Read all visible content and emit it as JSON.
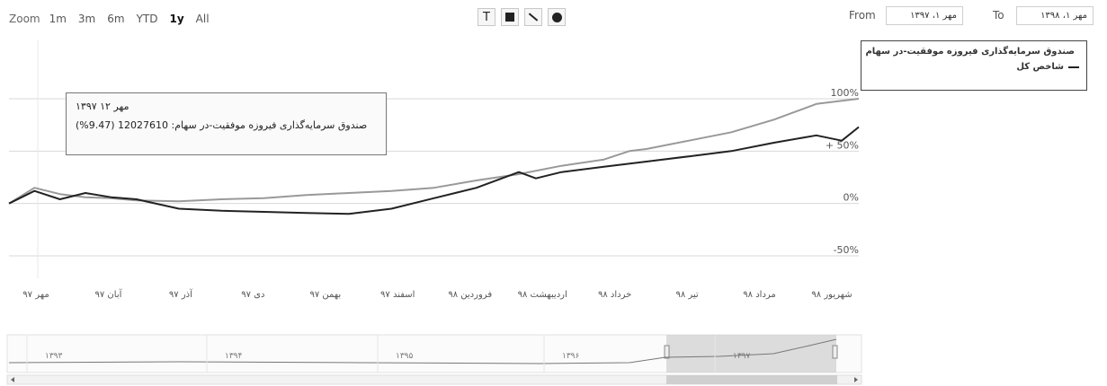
{
  "zoom": {
    "label": "Zoom",
    "buttons": [
      "1m",
      "3m",
      "6m",
      "YTD",
      "1y",
      "All"
    ],
    "active": "1y"
  },
  "tools": {
    "text_glyph": "T",
    "icons": [
      "text-tool-icon",
      "rectangle-tool-icon",
      "line-tool-icon",
      "circle-tool-icon"
    ]
  },
  "range": {
    "from_label": "From",
    "from_value": "مهر ۱، ۱۳۹۷",
    "to_label": "To",
    "to_value": "مهر ۱، ۱۳۹۸"
  },
  "tooltip": {
    "date": "مهر ۱۲ ۱۳۹۷",
    "text": "صندوق سرمایه‌گذاری فیروزه موفقیت-در سهام: 12027610 (9.47%)"
  },
  "colors": {
    "series_fund": "#999999",
    "series_index": "#222222",
    "grid": "#d8d8d8",
    "navigator_selection": "#cfcfcf"
  },
  "chart_data": {
    "type": "line",
    "y_unit": "%",
    "y_ticks": [
      "100%",
      "+ 50%",
      "0%",
      "-50%"
    ],
    "ylim": [
      -50,
      100
    ],
    "x_labels": [
      "مهر ۹۷",
      "آبان ۹۷",
      "آذر ۹۷",
      "دی ۹۷",
      "بهمن ۹۷",
      "اسفند ۹۷",
      "فروردین ۹۸",
      "اردیبهشت ۹۸",
      "خرداد ۹۸",
      "تیر ۹۸",
      "مرداد ۹۸",
      "شهریور ۹۸"
    ],
    "grid": true,
    "legend_position": "top-right",
    "series": [
      {
        "name": "صندوق سرمایه‌گذاری فیروزه موفقیت-در سهام",
        "points": [
          [
            0,
            0
          ],
          [
            3,
            15
          ],
          [
            6,
            9
          ],
          [
            9,
            6
          ],
          [
            12,
            5
          ],
          [
            15,
            3
          ],
          [
            20,
            2
          ],
          [
            25,
            4
          ],
          [
            30,
            5
          ],
          [
            35,
            8
          ],
          [
            40,
            10
          ],
          [
            45,
            12
          ],
          [
            50,
            15
          ],
          [
            55,
            22
          ],
          [
            60,
            28
          ],
          [
            65,
            36
          ],
          [
            70,
            42
          ],
          [
            73,
            50
          ],
          [
            75,
            52
          ],
          [
            80,
            60
          ],
          [
            85,
            68
          ],
          [
            90,
            80
          ],
          [
            95,
            95
          ],
          [
            98,
            98
          ],
          [
            100,
            100
          ]
        ]
      },
      {
        "name": "شاخص کل",
        "points": [
          [
            0,
            0
          ],
          [
            3,
            12
          ],
          [
            6,
            4
          ],
          [
            9,
            10
          ],
          [
            12,
            6
          ],
          [
            15,
            4
          ],
          [
            20,
            -5
          ],
          [
            25,
            -7
          ],
          [
            30,
            -8
          ],
          [
            35,
            -9
          ],
          [
            40,
            -10
          ],
          [
            45,
            -5
          ],
          [
            50,
            5
          ],
          [
            55,
            15
          ],
          [
            60,
            30
          ],
          [
            62,
            24
          ],
          [
            65,
            30
          ],
          [
            70,
            35
          ],
          [
            75,
            40
          ],
          [
            80,
            45
          ],
          [
            85,
            50
          ],
          [
            90,
            58
          ],
          [
            95,
            65
          ],
          [
            98,
            60
          ],
          [
            100,
            73
          ]
        ]
      }
    ],
    "navigator": {
      "years": [
        "۱۳۹۳",
        "۱۳۹۴",
        "۱۳۹۵",
        "۱۳۹۶",
        "۱۳۹۷"
      ]
    }
  }
}
